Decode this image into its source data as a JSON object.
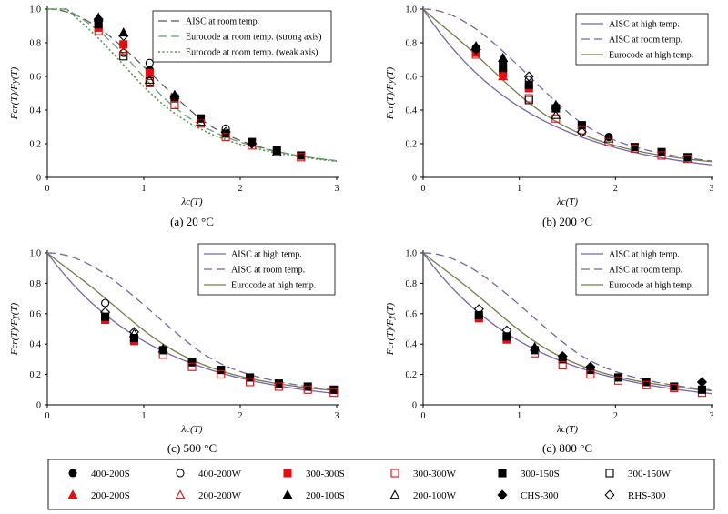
{
  "chart_data": [
    {
      "type": "scatter",
      "title": "(a) 20 °C",
      "xlabel": "λc(T)",
      "ylabel": "Fcr(T)/Fy(T)",
      "xlim": [
        0,
        3
      ],
      "ylim": [
        0,
        1.0
      ],
      "xticks": [
        "0",
        "1",
        "2",
        "3"
      ],
      "yticks": [
        "0",
        "0.2",
        "0.4",
        "0.6",
        "0.8",
        "1.0"
      ],
      "legend_position": "top-right",
      "curves": [
        {
          "name": "AISC at room temp.",
          "key": "aisc_room"
        },
        {
          "name": "Eurocode at room temp. (strong axis)",
          "key": "ec_room_strong"
        },
        {
          "name": "Eurocode at room temp. (weak axis)",
          "key": "ec_room_weak"
        }
      ],
      "points": [
        {
          "series": "400-200S",
          "x": 0.53,
          "y": 0.93
        },
        {
          "series": "300-300S",
          "x": 0.53,
          "y": 0.89
        },
        {
          "series": "300-300W",
          "x": 0.53,
          "y": 0.87
        },
        {
          "series": "300-150S",
          "x": 0.53,
          "y": 0.91
        },
        {
          "series": "200-100S",
          "x": 0.53,
          "y": 0.95
        },
        {
          "series": "CHS-300",
          "x": 0.53,
          "y": 0.94
        },
        {
          "series": "300-300S",
          "x": 0.79,
          "y": 0.79
        },
        {
          "series": "400-200W",
          "x": 0.79,
          "y": 0.74
        },
        {
          "series": "300-150W",
          "x": 0.79,
          "y": 0.72
        },
        {
          "series": "200-200W",
          "x": 0.79,
          "y": 0.75
        },
        {
          "series": "200-100S",
          "x": 0.79,
          "y": 0.86
        },
        {
          "series": "RHS-300",
          "x": 0.79,
          "y": 0.84
        },
        {
          "series": "400-200S",
          "x": 1.06,
          "y": 0.64
        },
        {
          "series": "300-300S",
          "x": 1.06,
          "y": 0.62
        },
        {
          "series": "300-150W",
          "x": 1.06,
          "y": 0.57
        },
        {
          "series": "300-300W",
          "x": 1.06,
          "y": 0.56
        },
        {
          "series": "400-200W",
          "x": 1.06,
          "y": 0.68
        },
        {
          "series": "200-100W",
          "x": 1.06,
          "y": 0.58
        },
        {
          "series": "300-150S",
          "x": 1.32,
          "y": 0.47
        },
        {
          "series": "200-100S",
          "x": 1.32,
          "y": 0.49
        },
        {
          "series": "300-300W",
          "x": 1.32,
          "y": 0.43
        },
        {
          "series": "RHS-300",
          "x": 1.32,
          "y": 0.48
        },
        {
          "series": "300-150S",
          "x": 1.59,
          "y": 0.35
        },
        {
          "series": "300-300W",
          "x": 1.59,
          "y": 0.32
        },
        {
          "series": "200-100W",
          "x": 1.59,
          "y": 0.33
        },
        {
          "series": "400-200W",
          "x": 1.85,
          "y": 0.29
        },
        {
          "series": "300-150S",
          "x": 1.85,
          "y": 0.26
        },
        {
          "series": "300-300W",
          "x": 1.85,
          "y": 0.24
        },
        {
          "series": "RHS-300",
          "x": 1.85,
          "y": 0.27
        },
        {
          "series": "300-150S",
          "x": 2.12,
          "y": 0.21
        },
        {
          "series": "300-300W",
          "x": 2.12,
          "y": 0.19
        },
        {
          "series": "CHS-300",
          "x": 2.12,
          "y": 0.2
        },
        {
          "series": "300-150S",
          "x": 2.38,
          "y": 0.16
        },
        {
          "series": "200-100W",
          "x": 2.38,
          "y": 0.15
        },
        {
          "series": "300-150S",
          "x": 2.63,
          "y": 0.13
        },
        {
          "series": "300-300W",
          "x": 2.63,
          "y": 0.12
        }
      ]
    },
    {
      "type": "scatter",
      "title": "(b) 200 °C",
      "xlabel": "λc(T)",
      "ylabel": "Fcr(T)/Fy(T)",
      "xlim": [
        0,
        3
      ],
      "ylim": [
        0,
        1.0
      ],
      "xticks": [
        "0",
        "1",
        "2",
        "3"
      ],
      "yticks": [
        "0",
        "0.2",
        "0.4",
        "0.6",
        "0.8",
        "1.0"
      ],
      "legend_position": "top-right",
      "curves": [
        {
          "name": "AISC at high temp.",
          "key": "aisc_high"
        },
        {
          "name": "AISC at room temp.",
          "key": "aisc_room"
        },
        {
          "name": "Eurocode at high temp.",
          "key": "ec_high"
        }
      ],
      "points": [
        {
          "series": "400-200S",
          "x": 0.55,
          "y": 0.77
        },
        {
          "series": "300-300S",
          "x": 0.55,
          "y": 0.74
        },
        {
          "series": "300-300W",
          "x": 0.55,
          "y": 0.73
        },
        {
          "series": "200-100S",
          "x": 0.55,
          "y": 0.78
        },
        {
          "series": "CHS-300",
          "x": 0.55,
          "y": 0.76
        },
        {
          "series": "400-200S",
          "x": 0.83,
          "y": 0.68
        },
        {
          "series": "300-300S",
          "x": 0.83,
          "y": 0.62
        },
        {
          "series": "300-150S",
          "x": 0.83,
          "y": 0.65
        },
        {
          "series": "200-200S",
          "x": 0.83,
          "y": 0.6
        },
        {
          "series": "200-100S",
          "x": 0.83,
          "y": 0.71
        },
        {
          "series": "CHS-300",
          "x": 0.83,
          "y": 0.69
        },
        {
          "series": "300-300S",
          "x": 1.1,
          "y": 0.53
        },
        {
          "series": "300-150S",
          "x": 1.1,
          "y": 0.55
        },
        {
          "series": "300-300W",
          "x": 1.1,
          "y": 0.47
        },
        {
          "series": "400-200W",
          "x": 1.1,
          "y": 0.58
        },
        {
          "series": "RHS-300",
          "x": 1.1,
          "y": 0.6
        },
        {
          "series": "300-150W",
          "x": 1.1,
          "y": 0.46
        },
        {
          "series": "300-150S",
          "x": 1.38,
          "y": 0.41
        },
        {
          "series": "200-100S",
          "x": 1.38,
          "y": 0.43
        },
        {
          "series": "300-300W",
          "x": 1.38,
          "y": 0.35
        },
        {
          "series": "200-100W",
          "x": 1.38,
          "y": 0.37
        },
        {
          "series": "300-150S",
          "x": 1.65,
          "y": 0.31
        },
        {
          "series": "300-300W",
          "x": 1.65,
          "y": 0.28
        },
        {
          "series": "RHS-300",
          "x": 1.65,
          "y": 0.27
        },
        {
          "series": "400-200S",
          "x": 1.93,
          "y": 0.24
        },
        {
          "series": "300-300W",
          "x": 1.93,
          "y": 0.21
        },
        {
          "series": "200-100W",
          "x": 1.93,
          "y": 0.23
        },
        {
          "series": "300-150S",
          "x": 2.2,
          "y": 0.18
        },
        {
          "series": "300-300W",
          "x": 2.2,
          "y": 0.17
        },
        {
          "series": "300-150S",
          "x": 2.48,
          "y": 0.15
        },
        {
          "series": "300-300W",
          "x": 2.48,
          "y": 0.13
        },
        {
          "series": "300-150S",
          "x": 2.75,
          "y": 0.12
        },
        {
          "series": "300-300W",
          "x": 2.75,
          "y": 0.11
        }
      ]
    },
    {
      "type": "scatter",
      "title": "(c) 500 °C",
      "xlabel": "λc(T)",
      "ylabel": "Fcr(T)/Fy(T)",
      "xlim": [
        0,
        3
      ],
      "ylim": [
        0,
        1.0
      ],
      "xticks": [
        "0",
        "1",
        "2",
        "3"
      ],
      "yticks": [
        "0",
        "0.2",
        "0.4",
        "0.6",
        "0.8",
        "1.0"
      ],
      "legend_position": "top-right",
      "curves": [
        {
          "name": "AISC at high temp.",
          "key": "aisc_high"
        },
        {
          "name": "AISC at room temp.",
          "key": "aisc_room"
        },
        {
          "name": "Eurocode at high temp.",
          "key": "ec_high"
        }
      ],
      "points": [
        {
          "series": "400-200W",
          "x": 0.6,
          "y": 0.67
        },
        {
          "series": "300-300S",
          "x": 0.6,
          "y": 0.56
        },
        {
          "series": "300-150S",
          "x": 0.6,
          "y": 0.58
        },
        {
          "series": "RHS-300",
          "x": 0.6,
          "y": 0.61
        },
        {
          "series": "300-300S",
          "x": 0.9,
          "y": 0.42
        },
        {
          "series": "300-150S",
          "x": 0.9,
          "y": 0.44
        },
        {
          "series": "200-100W",
          "x": 0.9,
          "y": 0.47
        },
        {
          "series": "RHS-300",
          "x": 0.9,
          "y": 0.48
        },
        {
          "series": "300-150S",
          "x": 1.2,
          "y": 0.36
        },
        {
          "series": "300-300W",
          "x": 1.2,
          "y": 0.33
        },
        {
          "series": "200-100S",
          "x": 1.2,
          "y": 0.37
        },
        {
          "series": "300-150S",
          "x": 1.5,
          "y": 0.28
        },
        {
          "series": "300-300W",
          "x": 1.5,
          "y": 0.25
        },
        {
          "series": "300-150S",
          "x": 1.8,
          "y": 0.23
        },
        {
          "series": "300-300W",
          "x": 1.8,
          "y": 0.2
        },
        {
          "series": "300-150S",
          "x": 2.1,
          "y": 0.18
        },
        {
          "series": "300-300W",
          "x": 2.1,
          "y": 0.15
        },
        {
          "series": "300-150S",
          "x": 2.4,
          "y": 0.14
        },
        {
          "series": "300-300W",
          "x": 2.4,
          "y": 0.12
        },
        {
          "series": "300-150S",
          "x": 2.7,
          "y": 0.12
        },
        {
          "series": "300-300W",
          "x": 2.7,
          "y": 0.1
        },
        {
          "series": "300-150S",
          "x": 2.97,
          "y": 0.1
        },
        {
          "series": "300-300W",
          "x": 2.97,
          "y": 0.08
        }
      ]
    },
    {
      "type": "scatter",
      "title": "(d) 800 °C",
      "xlabel": "λc(T)",
      "ylabel": "Fcr(T)/Fy(T)",
      "xlim": [
        0,
        3
      ],
      "ylim": [
        0,
        1.0
      ],
      "xticks": [
        "0",
        "1",
        "2",
        "3"
      ],
      "yticks": [
        "0",
        "0.2",
        "0.4",
        "0.6",
        "0.8",
        "1.0"
      ],
      "legend_position": "top-right",
      "curves": [
        {
          "name": "AISC at high temp.",
          "key": "aisc_high"
        },
        {
          "name": "AISC at room temp.",
          "key": "aisc_room"
        },
        {
          "name": "Eurocode at high temp.",
          "key": "ec_high"
        }
      ],
      "points": [
        {
          "series": "300-300S",
          "x": 0.58,
          "y": 0.57
        },
        {
          "series": "300-150S",
          "x": 0.58,
          "y": 0.59
        },
        {
          "series": "RHS-300",
          "x": 0.58,
          "y": 0.63
        },
        {
          "series": "300-300S",
          "x": 0.87,
          "y": 0.43
        },
        {
          "series": "300-150S",
          "x": 0.87,
          "y": 0.45
        },
        {
          "series": "RHS-300",
          "x": 0.87,
          "y": 0.49
        },
        {
          "series": "300-150S",
          "x": 1.16,
          "y": 0.36
        },
        {
          "series": "300-300W",
          "x": 1.16,
          "y": 0.34
        },
        {
          "series": "200-100S",
          "x": 1.16,
          "y": 0.38
        },
        {
          "series": "300-150S",
          "x": 1.45,
          "y": 0.3
        },
        {
          "series": "300-300W",
          "x": 1.45,
          "y": 0.26
        },
        {
          "series": "CHS-300",
          "x": 1.45,
          "y": 0.32
        },
        {
          "series": "300-150S",
          "x": 1.74,
          "y": 0.23
        },
        {
          "series": "300-300W",
          "x": 1.74,
          "y": 0.2
        },
        {
          "series": "CHS-300",
          "x": 1.74,
          "y": 0.25
        },
        {
          "series": "300-150S",
          "x": 2.03,
          "y": 0.18
        },
        {
          "series": "300-300W",
          "x": 2.03,
          "y": 0.16
        },
        {
          "series": "300-150S",
          "x": 2.32,
          "y": 0.15
        },
        {
          "series": "300-300W",
          "x": 2.32,
          "y": 0.13
        },
        {
          "series": "300-150S",
          "x": 2.61,
          "y": 0.12
        },
        {
          "series": "300-300W",
          "x": 2.61,
          "y": 0.11
        },
        {
          "series": "CHS-300",
          "x": 2.9,
          "y": 0.15
        },
        {
          "series": "300-300W",
          "x": 2.9,
          "y": 0.08
        },
        {
          "series": "300-150S",
          "x": 2.9,
          "y": 0.1
        }
      ]
    }
  ],
  "curve_styles": {
    "aisc_room": {
      "color": "#7b62a6",
      "dash": "9,5",
      "width": 1.3
    },
    "aisc_high": {
      "color": "#7b62a6",
      "dash": "",
      "width": 1.3
    },
    "ec_high": {
      "color": "#6f7f4a",
      "dash": "",
      "width": 1.3
    },
    "ec_room_strong": {
      "color": "#6a9e7a",
      "dash": "9,5",
      "width": 1.3
    },
    "ec_room_weak": {
      "color": "#4f9a45",
      "dash": "2,2.5",
      "width": 1.6
    },
    "aisc_room_panel_a": {
      "color": "#555555",
      "dash": "9,5",
      "width": 1.2
    }
  },
  "marker_series": [
    {
      "name": "400-200S",
      "shape": "circle",
      "fill": "#000000",
      "stroke": "#000000"
    },
    {
      "name": "400-200W",
      "shape": "circle",
      "fill": "none",
      "stroke": "#000000"
    },
    {
      "name": "300-300S",
      "shape": "square",
      "fill": "#e01010",
      "stroke": "#e01010"
    },
    {
      "name": "300-300W",
      "shape": "square",
      "fill": "none",
      "stroke": "#e01010"
    },
    {
      "name": "300-150S",
      "shape": "square",
      "fill": "#000000",
      "stroke": "#000000"
    },
    {
      "name": "300-150W",
      "shape": "square",
      "fill": "none",
      "stroke": "#000000"
    },
    {
      "name": "200-200S",
      "shape": "triangle",
      "fill": "#e01010",
      "stroke": "#e01010"
    },
    {
      "name": "200-200W",
      "shape": "triangle",
      "fill": "none",
      "stroke": "#e01010"
    },
    {
      "name": "200-100S",
      "shape": "triangle",
      "fill": "#000000",
      "stroke": "#000000"
    },
    {
      "name": "200-100W",
      "shape": "triangle",
      "fill": "none",
      "stroke": "#000000"
    },
    {
      "name": "CHS-300",
      "shape": "diamond",
      "fill": "#000000",
      "stroke": "#000000"
    },
    {
      "name": "RHS-300",
      "shape": "diamond",
      "fill": "none",
      "stroke": "#000000"
    }
  ]
}
